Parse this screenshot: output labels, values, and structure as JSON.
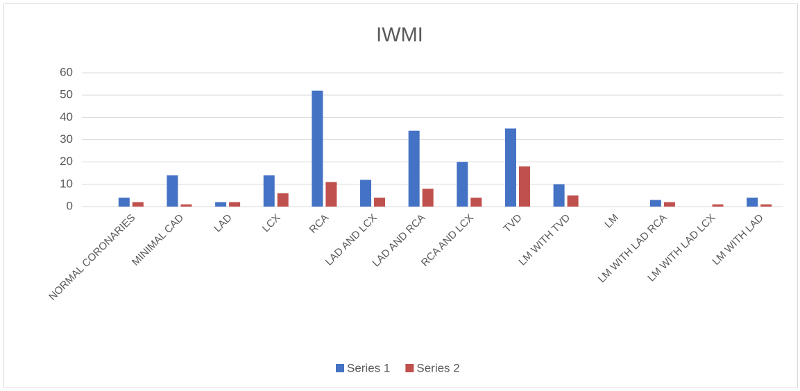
{
  "chart_data": {
    "type": "bar",
    "title": "IWMI",
    "categories": [
      "NORMAL CORONARIES",
      "MINIMAL CAD",
      "LAD",
      "LCX",
      "RCA",
      "LAD AND LCX",
      "LAD AND RCA",
      "RCA AND LCX",
      "TVD",
      "LM WITH TVD",
      "LM",
      "LM WITH LAD RCA",
      "LM WITH LAD LCX",
      "LM WITH LAD"
    ],
    "series": [
      {
        "name": "Series 1",
        "color": "#4472c4",
        "values": [
          4,
          14,
          2,
          14,
          52,
          12,
          34,
          20,
          35,
          10,
          0,
          3,
          0,
          4
        ]
      },
      {
        "name": "Series 2",
        "color": "#c0504d",
        "values": [
          2,
          1,
          2,
          6,
          11,
          4,
          8,
          4,
          18,
          5,
          0,
          2,
          1,
          1
        ]
      }
    ],
    "ylim": [
      0,
      60
    ],
    "yticks": [
      0,
      10,
      20,
      30,
      40,
      50,
      60
    ],
    "grid": true,
    "legend": "bottom"
  }
}
